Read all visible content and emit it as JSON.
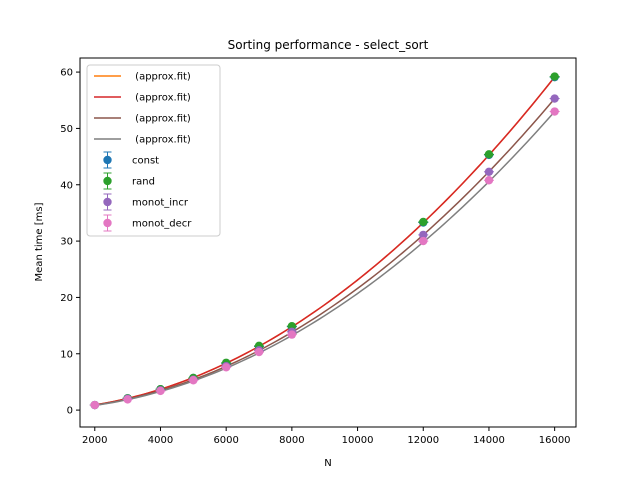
{
  "chart_data": {
    "type": "scatter",
    "title": "Sorting performance - select_sort",
    "xlabel": "N",
    "ylabel": "Mean time [ms]",
    "xlim": [
      1550,
      16650
    ],
    "ylim": [
      -3,
      62.5
    ],
    "xticks": [
      2000,
      4000,
      6000,
      8000,
      10000,
      12000,
      14000,
      16000
    ],
    "yticks": [
      0,
      10,
      20,
      30,
      40,
      50,
      60
    ],
    "grid": false,
    "legend_position": "top-left",
    "x": [
      2000,
      3000,
      4000,
      5000,
      6000,
      7000,
      8000,
      12000,
      14000,
      16000
    ],
    "series": [
      {
        "name": "const",
        "color": "#1f77b4",
        "marker": "errorbar-point",
        "values": [
          0.9,
          2.1,
          3.7,
          5.7,
          8.3,
          11.3,
          14.8,
          33.3,
          45.3,
          59.1
        ]
      },
      {
        "name": "rand",
        "color": "#2ca02c",
        "marker": "errorbar-point",
        "values": [
          0.9,
          2.1,
          3.7,
          5.7,
          8.4,
          11.4,
          14.9,
          33.4,
          45.4,
          59.2
        ]
      },
      {
        "name": "monot_incr",
        "color": "#9467bd",
        "marker": "errorbar-point",
        "values": [
          0.9,
          2.0,
          3.5,
          5.4,
          7.8,
          10.6,
          13.9,
          31.1,
          42.3,
          55.3
        ]
      },
      {
        "name": "monot_decr",
        "color": "#e377c2",
        "marker": "errorbar-point",
        "values": [
          0.9,
          1.9,
          3.4,
          5.3,
          7.6,
          10.3,
          13.4,
          30.0,
          40.8,
          53.0
        ]
      }
    ],
    "fits": [
      {
        "name": " (approx.fit)",
        "color": "#ff7f0e",
        "a": 0.000231,
        "b": 0
      },
      {
        "name": " (approx.fit)",
        "color": "#d62728",
        "a": 0.000231,
        "b": 0
      },
      {
        "name": " (approx.fit)",
        "color": "#8c564b",
        "a": 0.000216,
        "b": 0
      },
      {
        "name": " (approx.fit)",
        "color": "#7f7f7f",
        "a": 0.000207,
        "b": 0
      }
    ]
  }
}
